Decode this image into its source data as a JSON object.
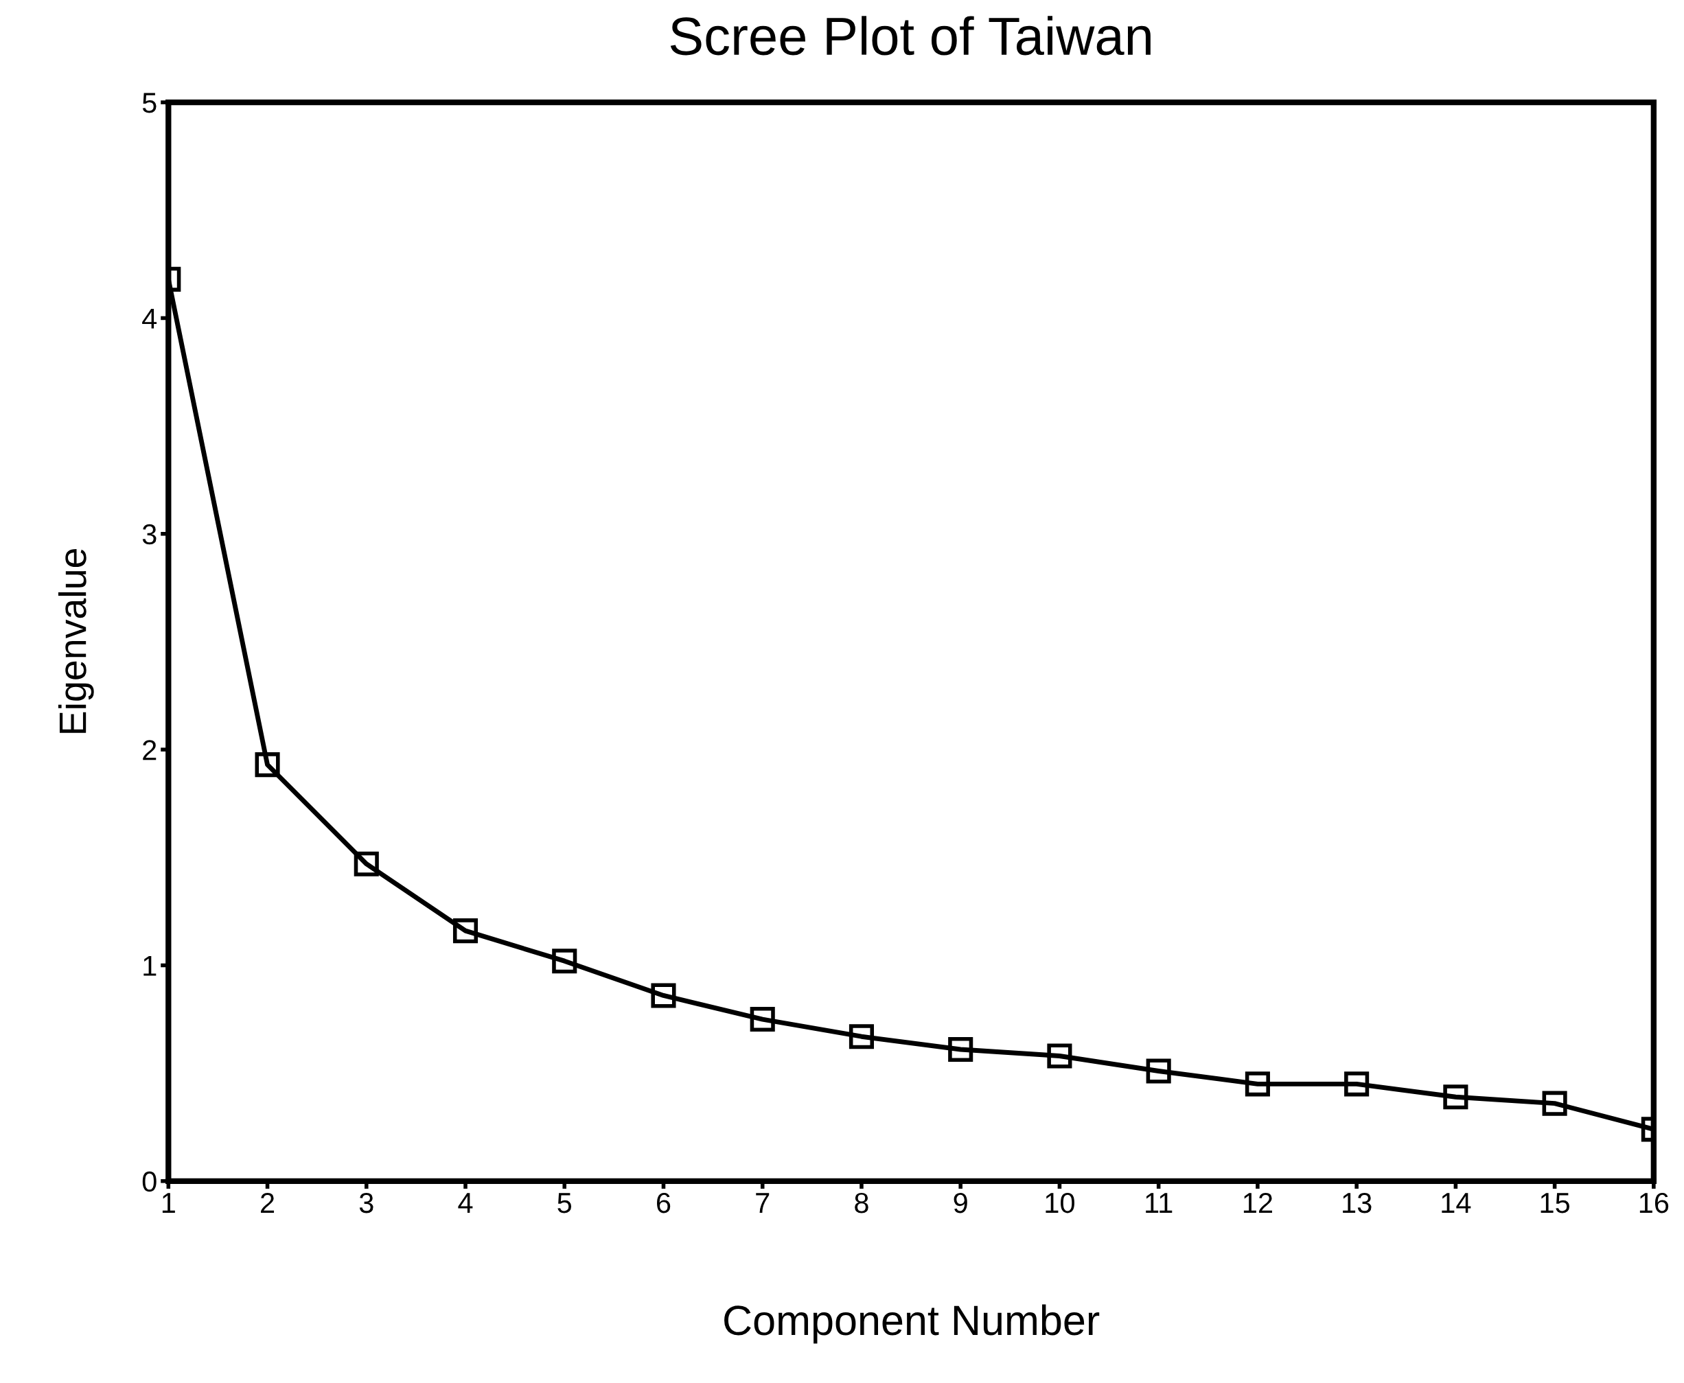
{
  "chart_data": {
    "type": "line",
    "title": "Scree Plot of Taiwan",
    "xlabel": "Component Number",
    "ylabel": "Eigenvalue",
    "x": [
      1,
      2,
      3,
      4,
      5,
      6,
      7,
      8,
      9,
      10,
      11,
      12,
      13,
      14,
      15,
      16
    ],
    "series": [
      {
        "color": "#000000",
        "values": [
          4.18,
          1.93,
          1.47,
          1.16,
          1.02,
          0.86,
          0.75,
          0.67,
          0.61,
          0.58,
          0.51,
          0.45,
          0.45,
          0.39,
          0.36,
          0.24
        ]
      }
    ],
    "xlim": [
      1,
      16
    ],
    "ylim": [
      0,
      5
    ],
    "xticks": [
      1,
      2,
      3,
      4,
      5,
      6,
      7,
      8,
      9,
      10,
      11,
      12,
      13,
      14,
      15,
      16
    ],
    "yticks": [
      0,
      1,
      2,
      3,
      4,
      5
    ],
    "grid": false,
    "legend": false,
    "marker": "square",
    "line_style": "solid"
  }
}
